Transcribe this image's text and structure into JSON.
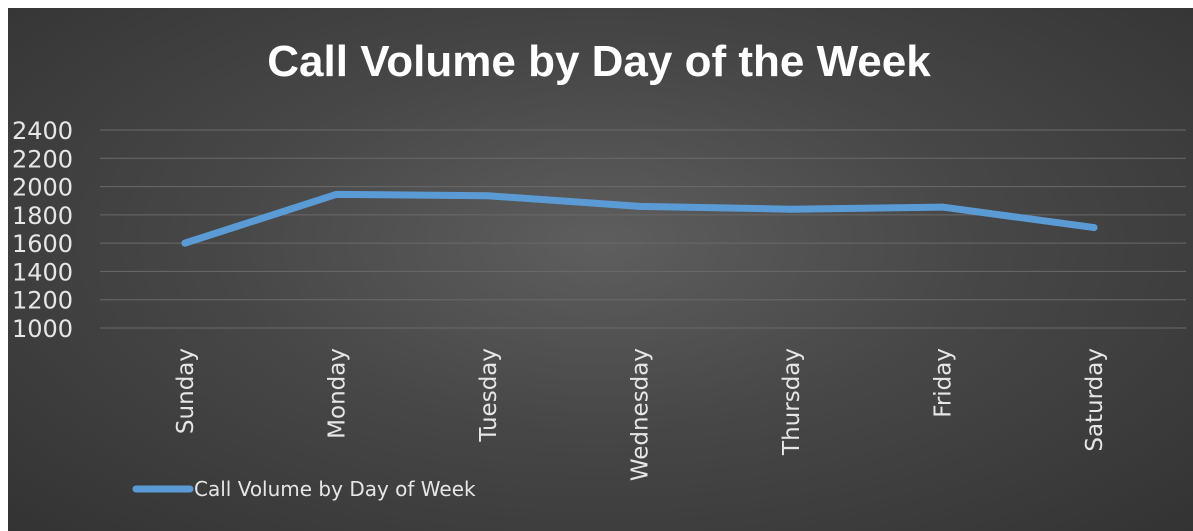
{
  "chart_data": {
    "type": "line",
    "title": "Call Volume by Day of the Week",
    "categories": [
      "Sunday",
      "Monday",
      "Tuesday",
      "Wednesday",
      "Thursday",
      "Friday",
      "Saturday"
    ],
    "series": [
      {
        "name": "Call Volume by Day of Week",
        "values": [
          1600,
          1945,
          1935,
          1860,
          1840,
          1855,
          1710
        ],
        "color": "#5b9bd5"
      }
    ],
    "ylim": [
      1000,
      2400
    ],
    "yticks": [
      2400,
      2200,
      2000,
      1800,
      1600,
      1400,
      1200,
      1000
    ],
    "grid": true,
    "legend_position": "bottom-left"
  }
}
